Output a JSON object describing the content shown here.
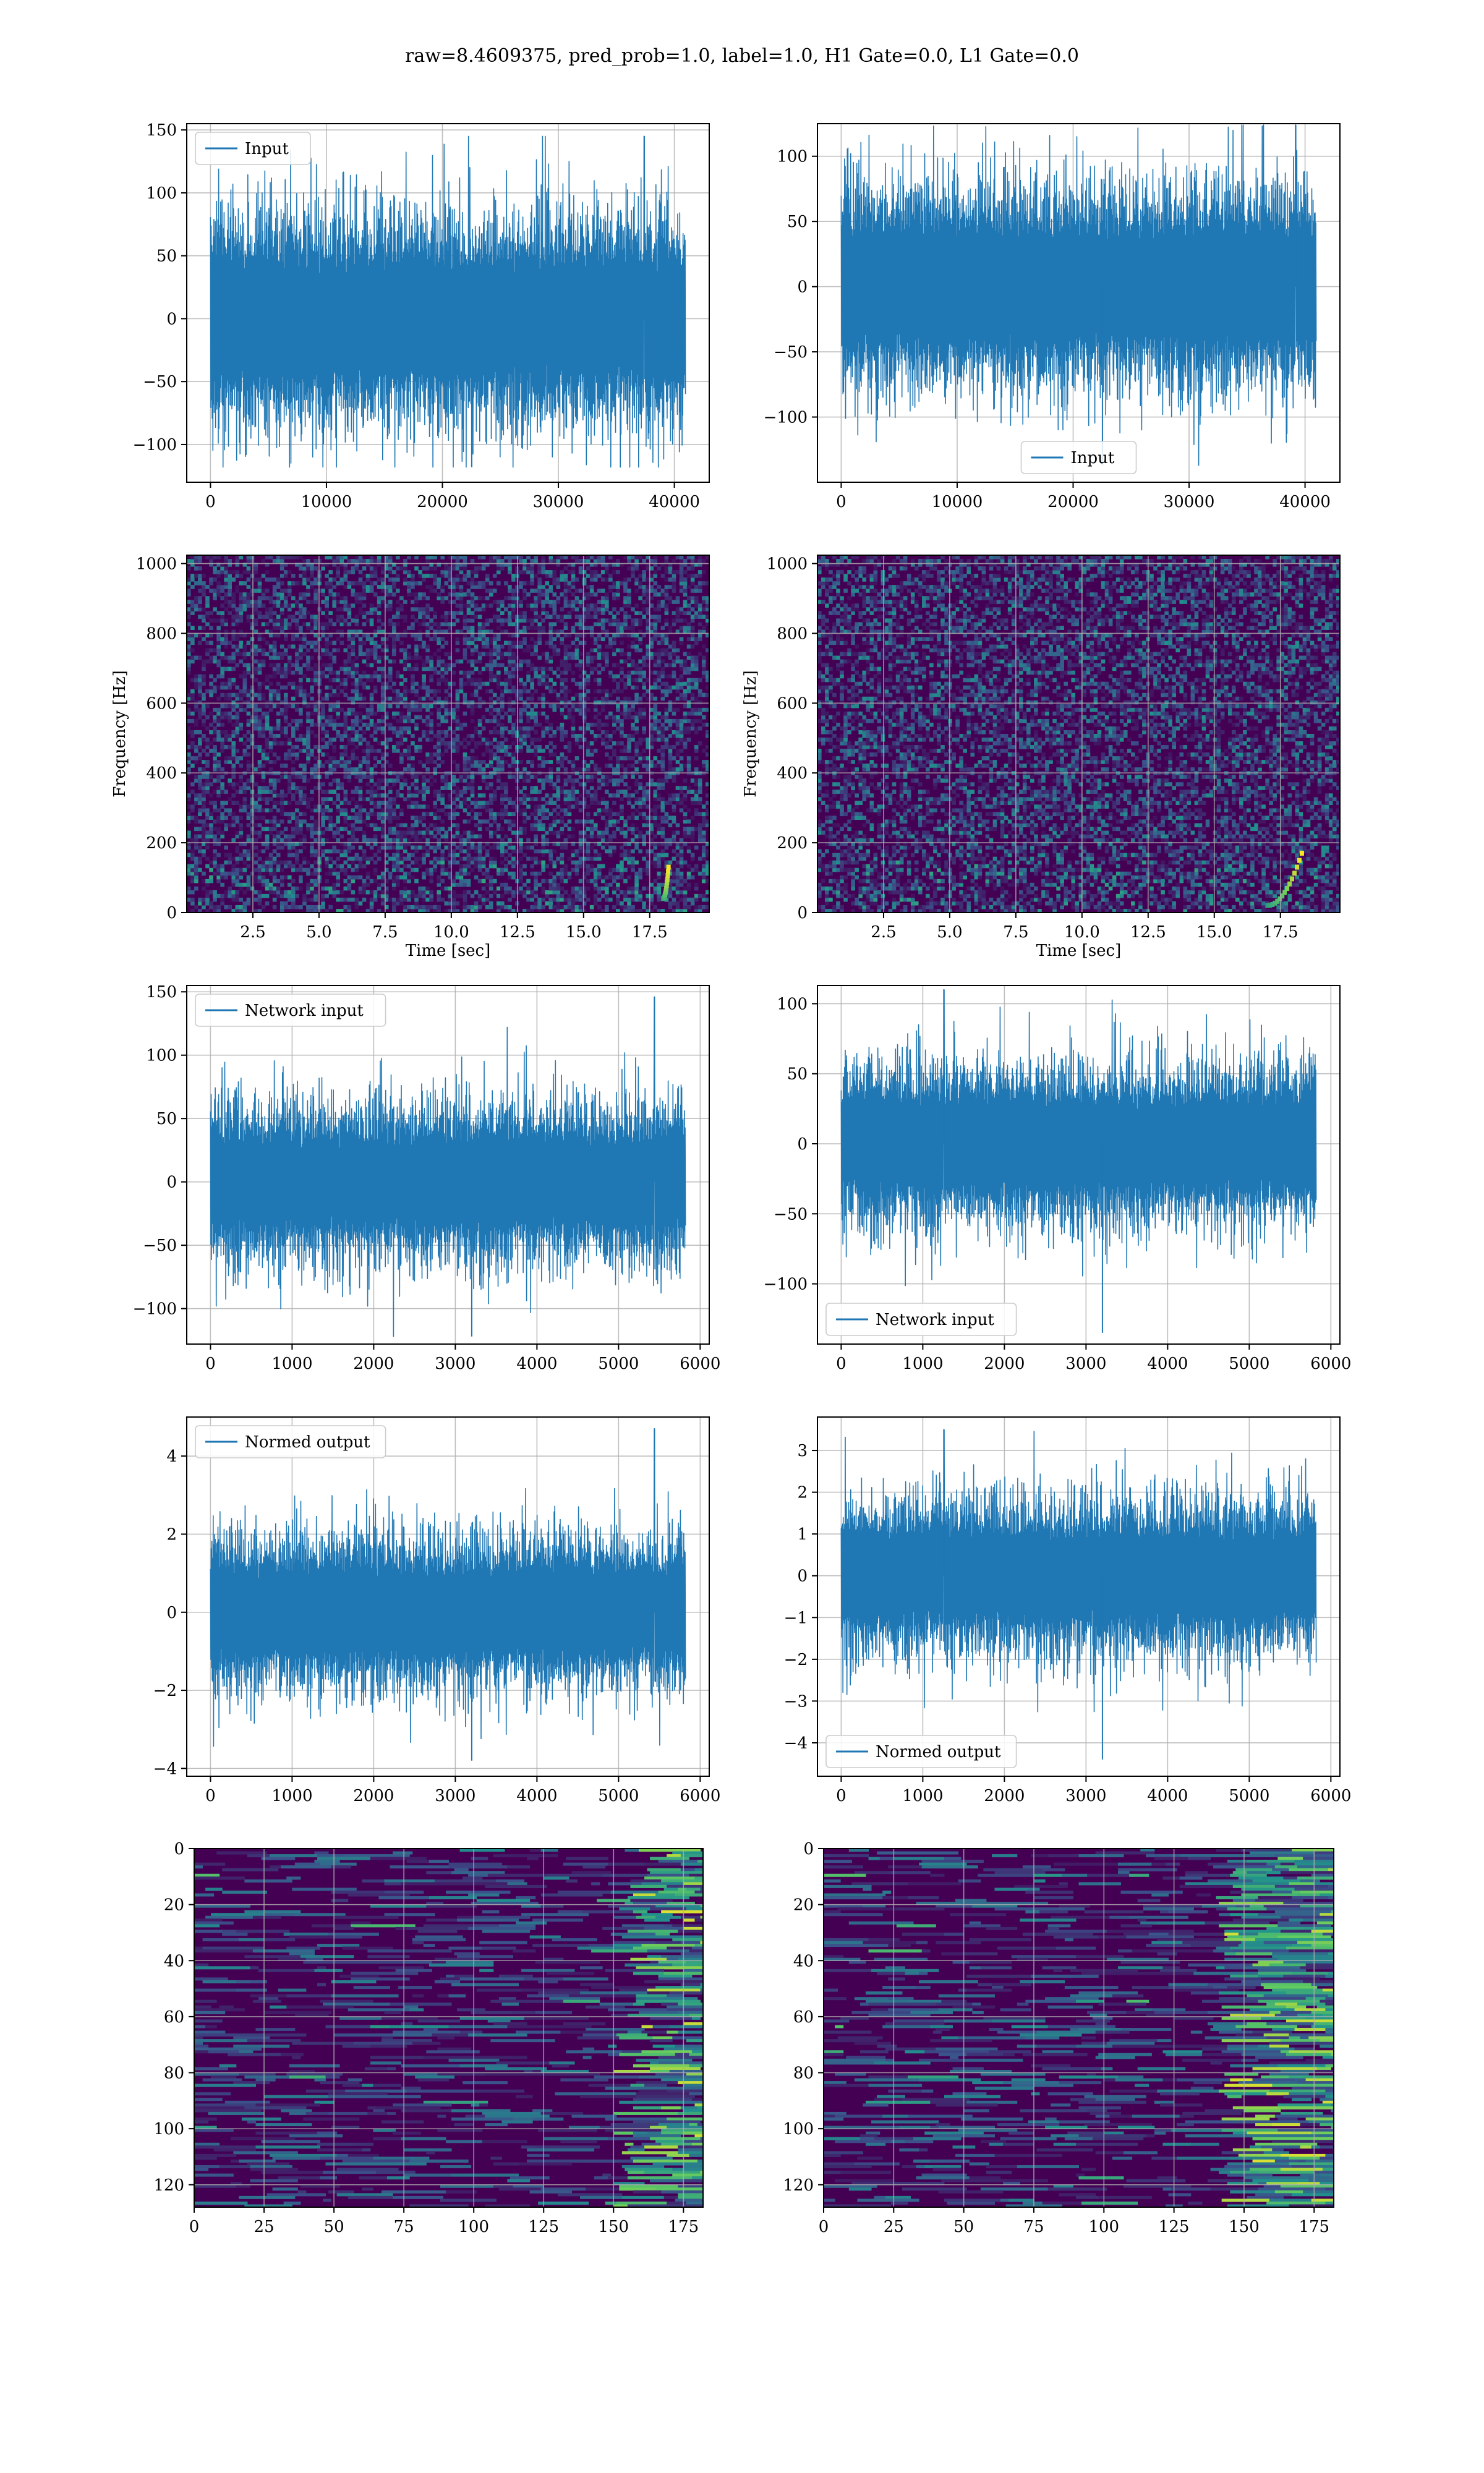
{
  "suptitle": "raw=8.4609375, pred_prob=1.0, label=1.0, H1 Gate=0.0, L1 Gate=0.0",
  "colors": {
    "line": "#1f77b4",
    "grid": "#b0b0b0",
    "heat_bg": "#440154",
    "heat_mid": "#31688e",
    "heat_hi": "#35b779",
    "heat_peak": "#fde725"
  },
  "chart_data": [
    {
      "id": "input-h1",
      "type": "line",
      "legend": "Input",
      "legend_loc": "upper left",
      "xlim": [
        -2048,
        43008
      ],
      "ylim": [
        -130,
        155
      ],
      "xticks": [
        0,
        10000,
        20000,
        30000,
        40000
      ],
      "xtick_labels": [
        "0",
        "10000",
        "20000",
        "30000",
        "40000"
      ],
      "yticks": [
        -100,
        -50,
        0,
        50,
        100,
        150
      ],
      "ytick_labels": [
        "−100",
        "−50",
        "0",
        "50",
        "100",
        "150"
      ],
      "x_range": [
        0,
        40960
      ],
      "amp_typical": 40,
      "amp_env": 80,
      "peak_min": -118,
      "peak_max": 145,
      "peak_max_x": 37400,
      "seed": 11
    },
    {
      "id": "input-l1",
      "type": "line",
      "legend": "Input",
      "legend_loc": "lower center",
      "xlim": [
        -2048,
        43008
      ],
      "ylim": [
        -150,
        125
      ],
      "xticks": [
        0,
        10000,
        20000,
        30000,
        40000
      ],
      "xtick_labels": [
        "0",
        "10000",
        "20000",
        "30000",
        "40000"
      ],
      "yticks": [
        -100,
        -50,
        0,
        50,
        100
      ],
      "ytick_labels": [
        "−100",
        "−50",
        "0",
        "50",
        "100"
      ],
      "x_range": [
        0,
        40960
      ],
      "amp_typical": 38,
      "amp_env": 75,
      "peak_min": -137,
      "peak_max": 124,
      "peak_max_x": 39200,
      "seed": 23
    },
    {
      "id": "spec-h1",
      "type": "heatmap",
      "xlabel": "Time [sec]",
      "ylabel": "Frequency [Hz]",
      "xlim": [
        0,
        19.75
      ],
      "ylim": [
        0,
        1024
      ],
      "xticks": [
        2.5,
        5.0,
        7.5,
        10.0,
        12.5,
        15.0,
        17.5
      ],
      "xtick_labels": [
        "2.5",
        "5.0",
        "7.5",
        "10.0",
        "12.5",
        "15.0",
        "17.5"
      ],
      "yticks": [
        0,
        200,
        400,
        600,
        800,
        1000
      ],
      "ytick_labels": [
        "0",
        "200",
        "400",
        "600",
        "800",
        "1000"
      ],
      "chirp": {
        "t_start": 18.0,
        "t_end": 18.2,
        "f_start": 40,
        "f_end": 130
      },
      "seed": 31
    },
    {
      "id": "spec-l1",
      "type": "heatmap",
      "xlabel": "Time [sec]",
      "ylabel": "Frequency [Hz]",
      "xlim": [
        0,
        19.75
      ],
      "ylim": [
        0,
        1024
      ],
      "xticks": [
        2.5,
        5.0,
        7.5,
        10.0,
        12.5,
        15.0,
        17.5
      ],
      "xtick_labels": [
        "2.5",
        "5.0",
        "7.5",
        "10.0",
        "12.5",
        "15.0",
        "17.5"
      ],
      "yticks": [
        0,
        200,
        400,
        600,
        800,
        1000
      ],
      "ytick_labels": [
        "0",
        "200",
        "400",
        "600",
        "800",
        "1000"
      ],
      "chirp": {
        "t_start": 17.0,
        "t_end": 18.3,
        "f_start": 20,
        "f_end": 170
      },
      "seed": 47
    },
    {
      "id": "net-h1",
      "type": "line",
      "legend": "Network input",
      "legend_loc": "upper left",
      "xlim": [
        -291,
        6111
      ],
      "ylim": [
        -128,
        155
      ],
      "xticks": [
        0,
        1000,
        2000,
        3000,
        4000,
        5000,
        6000
      ],
      "xtick_labels": [
        "0",
        "1000",
        "2000",
        "3000",
        "4000",
        "5000",
        "6000"
      ],
      "yticks": [
        -100,
        -50,
        0,
        50,
        100,
        150
      ],
      "ytick_labels": [
        "−100",
        "−50",
        "0",
        "50",
        "100",
        "150"
      ],
      "x_range": [
        0,
        5820
      ],
      "amp_typical": 32,
      "amp_env": 60,
      "peak_min": -122,
      "peak_max": 146,
      "peak_max_x": 5440,
      "seed": 59
    },
    {
      "id": "net-l1",
      "type": "line",
      "legend": "Network input",
      "legend_loc": "lower left",
      "xlim": [
        -291,
        6111
      ],
      "ylim": [
        -143,
        113
      ],
      "xticks": [
        0,
        1000,
        2000,
        3000,
        4000,
        5000,
        6000
      ],
      "xtick_labels": [
        "0",
        "1000",
        "2000",
        "3000",
        "4000",
        "5000",
        "6000"
      ],
      "yticks": [
        -100,
        -50,
        0,
        50,
        100
      ],
      "ytick_labels": [
        "−100",
        "−50",
        "0",
        "50",
        "100"
      ],
      "x_range": [
        0,
        5820
      ],
      "amp_typical": 30,
      "amp_env": 55,
      "peak_min": -135,
      "peak_max": 110,
      "peak_max_x": 1260,
      "seed": 71
    },
    {
      "id": "norm-h1",
      "type": "line",
      "legend": "Normed output",
      "legend_loc": "upper left",
      "xlim": [
        -291,
        6111
      ],
      "ylim": [
        -4.2,
        5.0
      ],
      "xticks": [
        0,
        1000,
        2000,
        3000,
        4000,
        5000,
        6000
      ],
      "xtick_labels": [
        "0",
        "1000",
        "2000",
        "3000",
        "4000",
        "5000",
        "6000"
      ],
      "yticks": [
        -4,
        -2,
        0,
        2,
        4
      ],
      "ytick_labels": [
        "−4",
        "−2",
        "0",
        "2",
        "4"
      ],
      "x_range": [
        0,
        5820
      ],
      "amp_typical": 1.0,
      "amp_env": 1.9,
      "peak_min": -3.8,
      "peak_max": 4.7,
      "peak_max_x": 5440,
      "seed": 83
    },
    {
      "id": "norm-l1",
      "type": "line",
      "legend": "Normed output",
      "legend_loc": "lower left",
      "xlim": [
        -291,
        6111
      ],
      "ylim": [
        -4.8,
        3.8
      ],
      "xticks": [
        0,
        1000,
        2000,
        3000,
        4000,
        5000,
        6000
      ],
      "xtick_labels": [
        "0",
        "1000",
        "2000",
        "3000",
        "4000",
        "5000",
        "6000"
      ],
      "yticks": [
        -4,
        -3,
        -2,
        -1,
        0,
        1,
        2,
        3
      ],
      "ytick_labels": [
        "−4",
        "−3",
        "−2",
        "−1",
        "0",
        "1",
        "2",
        "3"
      ],
      "x_range": [
        0,
        5820
      ],
      "amp_typical": 0.95,
      "amp_env": 1.8,
      "peak_min": -4.4,
      "peak_max": 3.5,
      "peak_max_x": 1260,
      "seed": 97
    },
    {
      "id": "feat-h1",
      "type": "heatmap",
      "xlim": [
        0,
        182
      ],
      "ylim": [
        128,
        0
      ],
      "xticks": [
        0,
        25,
        50,
        75,
        100,
        125,
        150,
        175
      ],
      "xtick_labels": [
        "0",
        "25",
        "50",
        "75",
        "100",
        "125",
        "150",
        "175"
      ],
      "yticks": [
        0,
        20,
        40,
        60,
        80,
        100,
        120
      ],
      "ytick_labels": [
        "0",
        "20",
        "40",
        "60",
        "80",
        "100",
        "120"
      ],
      "rows": 128,
      "cols": 182,
      "hot_from_col": 150,
      "seed": 101
    },
    {
      "id": "feat-l1",
      "type": "heatmap",
      "xlim": [
        0,
        182
      ],
      "ylim": [
        128,
        0
      ],
      "xticks": [
        0,
        25,
        50,
        75,
        100,
        125,
        150,
        175
      ],
      "xtick_labels": [
        "0",
        "25",
        "50",
        "75",
        "100",
        "125",
        "150",
        "175"
      ],
      "yticks": [
        0,
        20,
        40,
        60,
        80,
        100,
        120
      ],
      "ytick_labels": [
        "0",
        "20",
        "40",
        "60",
        "80",
        "100",
        "120"
      ],
      "rows": 128,
      "cols": 182,
      "hot_from_col": 140,
      "seed": 113
    }
  ]
}
